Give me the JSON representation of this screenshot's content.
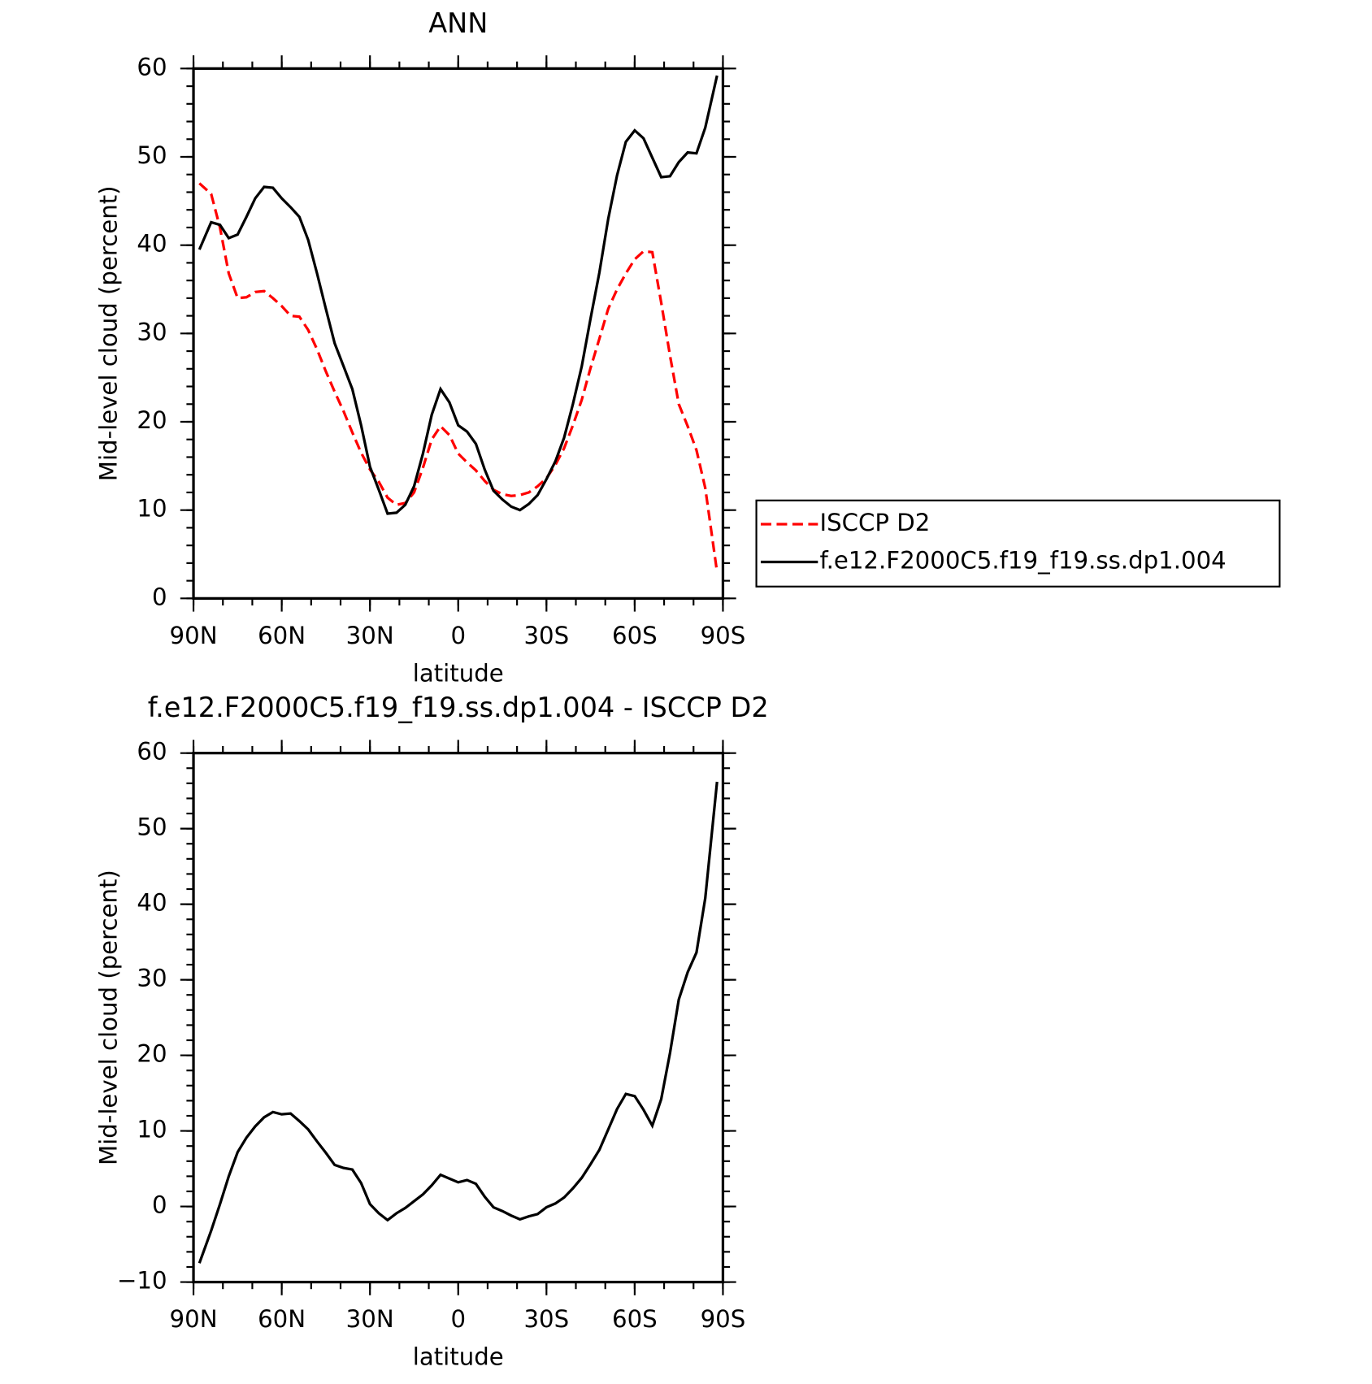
{
  "chart_data": [
    {
      "type": "line",
      "title": "ANN",
      "xlabel": "latitude",
      "ylabel": "Mid-level cloud (percent)",
      "x": [
        88,
        84,
        81,
        78,
        75,
        72,
        69,
        66,
        63,
        60,
        57,
        54,
        51,
        48,
        45,
        42,
        39,
        36,
        33,
        30,
        27,
        24,
        21,
        18,
        15,
        12,
        9,
        6,
        3,
        0,
        -3,
        -6,
        -9,
        -12,
        -15,
        -18,
        -21,
        -24,
        -27,
        -30,
        -33,
        -36,
        -39,
        -42,
        -45,
        -48,
        -51,
        -54,
        -57,
        -60,
        -63,
        -66,
        -69,
        -72,
        -75,
        -78,
        -81,
        -84,
        -88
      ],
      "series": [
        {
          "name": "ISCCP D2",
          "color": "#ff0000",
          "style": "dashed",
          "values": [
            47.0,
            45.8,
            42.0,
            36.8,
            34.0,
            34.1,
            34.7,
            34.8,
            34.0,
            33.1,
            32.0,
            31.9,
            30.4,
            28.2,
            25.7,
            23.4,
            21.2,
            18.8,
            16.5,
            14.6,
            13.2,
            11.4,
            10.6,
            10.8,
            12.0,
            14.8,
            18.0,
            19.5,
            18.5,
            16.4,
            15.4,
            14.5,
            13.3,
            12.3,
            11.8,
            11.6,
            11.7,
            12.0,
            12.7,
            13.6,
            15.1,
            17.0,
            19.6,
            22.5,
            26.1,
            29.4,
            32.8,
            35.0,
            36.8,
            38.4,
            39.3,
            39.2,
            33.5,
            27.5,
            22.0,
            19.5,
            16.8,
            12.5,
            3.0
          ]
        },
        {
          "name": "f.e12.F2000C5.f19_f19.ss.dp1.004",
          "color": "#000000",
          "style": "solid",
          "values": [
            39.5,
            42.6,
            42.3,
            40.8,
            41.2,
            43.2,
            45.3,
            46.6,
            46.5,
            45.3,
            44.3,
            43.2,
            40.6,
            36.8,
            32.8,
            28.9,
            26.3,
            23.7,
            19.6,
            14.9,
            12.3,
            9.6,
            9.7,
            10.6,
            12.7,
            16.4,
            20.8,
            23.7,
            22.2,
            19.6,
            18.9,
            17.5,
            14.6,
            12.2,
            11.2,
            10.4,
            10.0,
            10.7,
            11.7,
            13.5,
            15.5,
            18.2,
            22.0,
            26.3,
            31.7,
            36.9,
            43.0,
            47.9,
            51.7,
            53.0,
            52.1,
            49.9,
            47.7,
            47.8,
            49.4,
            50.5,
            50.4,
            53.3,
            59.2
          ]
        }
      ],
      "xlim": [
        90,
        -90
      ],
      "xticks": [
        {
          "value": 90,
          "label": "90N"
        },
        {
          "value": 60,
          "label": "60N"
        },
        {
          "value": 30,
          "label": "30N"
        },
        0,
        {
          "value": -30,
          "label": "30S"
        },
        {
          "value": -60,
          "label": "60S"
        },
        {
          "value": -90,
          "label": "90S"
        }
      ],
      "ylim": [
        0,
        60
      ],
      "yticks": [
        0,
        10,
        20,
        30,
        40,
        50,
        60
      ],
      "legend": "right"
    },
    {
      "type": "line",
      "title": "f.e12.F2000C5.f19_f19.ss.dp1.004 - ISCCP D2",
      "xlabel": "latitude",
      "ylabel": "Mid-level cloud (percent)",
      "x": [
        88,
        84,
        81,
        78,
        75,
        72,
        69,
        66,
        63,
        60,
        57,
        54,
        51,
        48,
        45,
        42,
        39,
        36,
        33,
        30,
        27,
        24,
        21,
        18,
        15,
        12,
        9,
        6,
        3,
        0,
        -3,
        -6,
        -9,
        -12,
        -15,
        -18,
        -21,
        -24,
        -27,
        -30,
        -33,
        -36,
        -39,
        -42,
        -45,
        -48,
        -51,
        -54,
        -57,
        -60,
        -63,
        -66,
        -69,
        -72,
        -75,
        -78,
        -81,
        -84,
        -88
      ],
      "series": [
        {
          "color": "#000000",
          "style": "solid",
          "values": [
            -7.5,
            -3.2,
            0.3,
            4.0,
            7.2,
            9.1,
            10.6,
            11.8,
            12.5,
            12.2,
            12.3,
            11.3,
            10.2,
            8.6,
            7.1,
            5.5,
            5.1,
            4.9,
            3.1,
            0.3,
            -0.9,
            -1.8,
            -0.9,
            -0.2,
            0.7,
            1.6,
            2.8,
            4.2,
            3.7,
            3.2,
            3.5,
            3.0,
            1.3,
            -0.1,
            -0.6,
            -1.2,
            -1.7,
            -1.3,
            -1.0,
            -0.1,
            0.4,
            1.2,
            2.4,
            3.8,
            5.6,
            7.5,
            10.2,
            12.9,
            14.9,
            14.6,
            12.8,
            10.7,
            14.2,
            20.3,
            27.4,
            31.0,
            33.6,
            40.8,
            56.2
          ]
        }
      ],
      "xlim": [
        90,
        -90
      ],
      "xticks": [
        {
          "value": 90,
          "label": "90N"
        },
        {
          "value": 60,
          "label": "60N"
        },
        {
          "value": 30,
          "label": "30N"
        },
        0,
        {
          "value": -30,
          "label": "30S"
        },
        {
          "value": -60,
          "label": "60S"
        },
        {
          "value": -90,
          "label": "90S"
        }
      ],
      "ylim": [
        -10,
        60
      ],
      "yticks": [
        {
          "value": -10,
          "label": "−10"
        },
        0,
        10,
        20,
        30,
        40,
        50,
        60
      ]
    }
  ]
}
